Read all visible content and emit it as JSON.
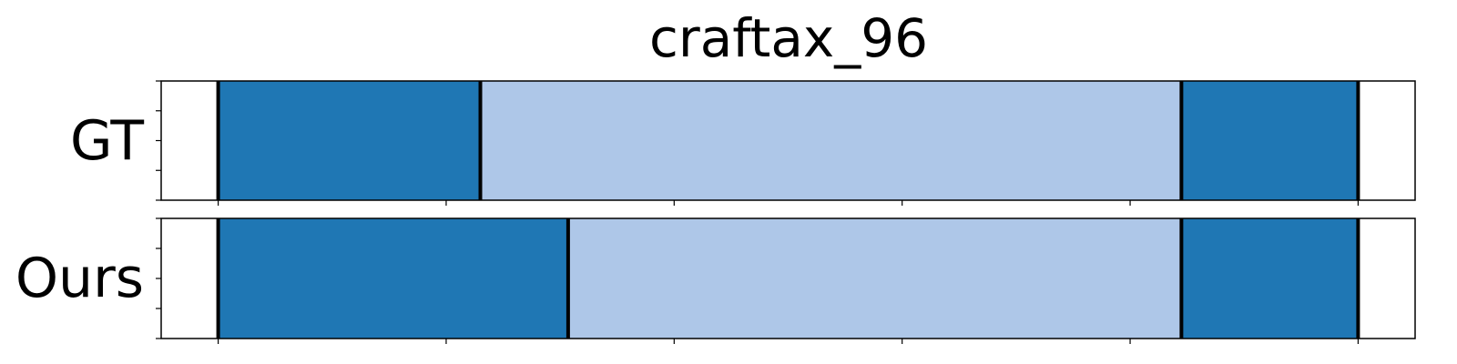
{
  "chart_data": {
    "type": "timeline-segmentation",
    "title": "craftax_96",
    "xlim": [
      -0.5,
      10.5
    ],
    "colors": {
      "dark_segment": "#1f77b4",
      "light_segment": "#aec7e8",
      "boundary": "#000000",
      "frame": "#000000"
    },
    "x_ticks": [
      0,
      2,
      4,
      6,
      8,
      10
    ],
    "y_minor_ticks": [
      0,
      0.25,
      0.5,
      0.75,
      1
    ],
    "rows": [
      {
        "label": "GT",
        "segments": [
          {
            "start": 0,
            "end": 2.3,
            "shade": "dark"
          },
          {
            "start": 2.3,
            "end": 8.45,
            "shade": "light"
          },
          {
            "start": 8.45,
            "end": 10,
            "shade": "dark"
          }
        ],
        "boundaries": [
          0,
          2.3,
          8.45,
          10
        ]
      },
      {
        "label": "Ours",
        "segments": [
          {
            "start": 0,
            "end": 3.07,
            "shade": "dark"
          },
          {
            "start": 3.07,
            "end": 8.45,
            "shade": "light"
          },
          {
            "start": 8.45,
            "end": 10,
            "shade": "dark"
          }
        ],
        "boundaries": [
          0,
          3.07,
          8.45,
          10
        ]
      }
    ]
  }
}
